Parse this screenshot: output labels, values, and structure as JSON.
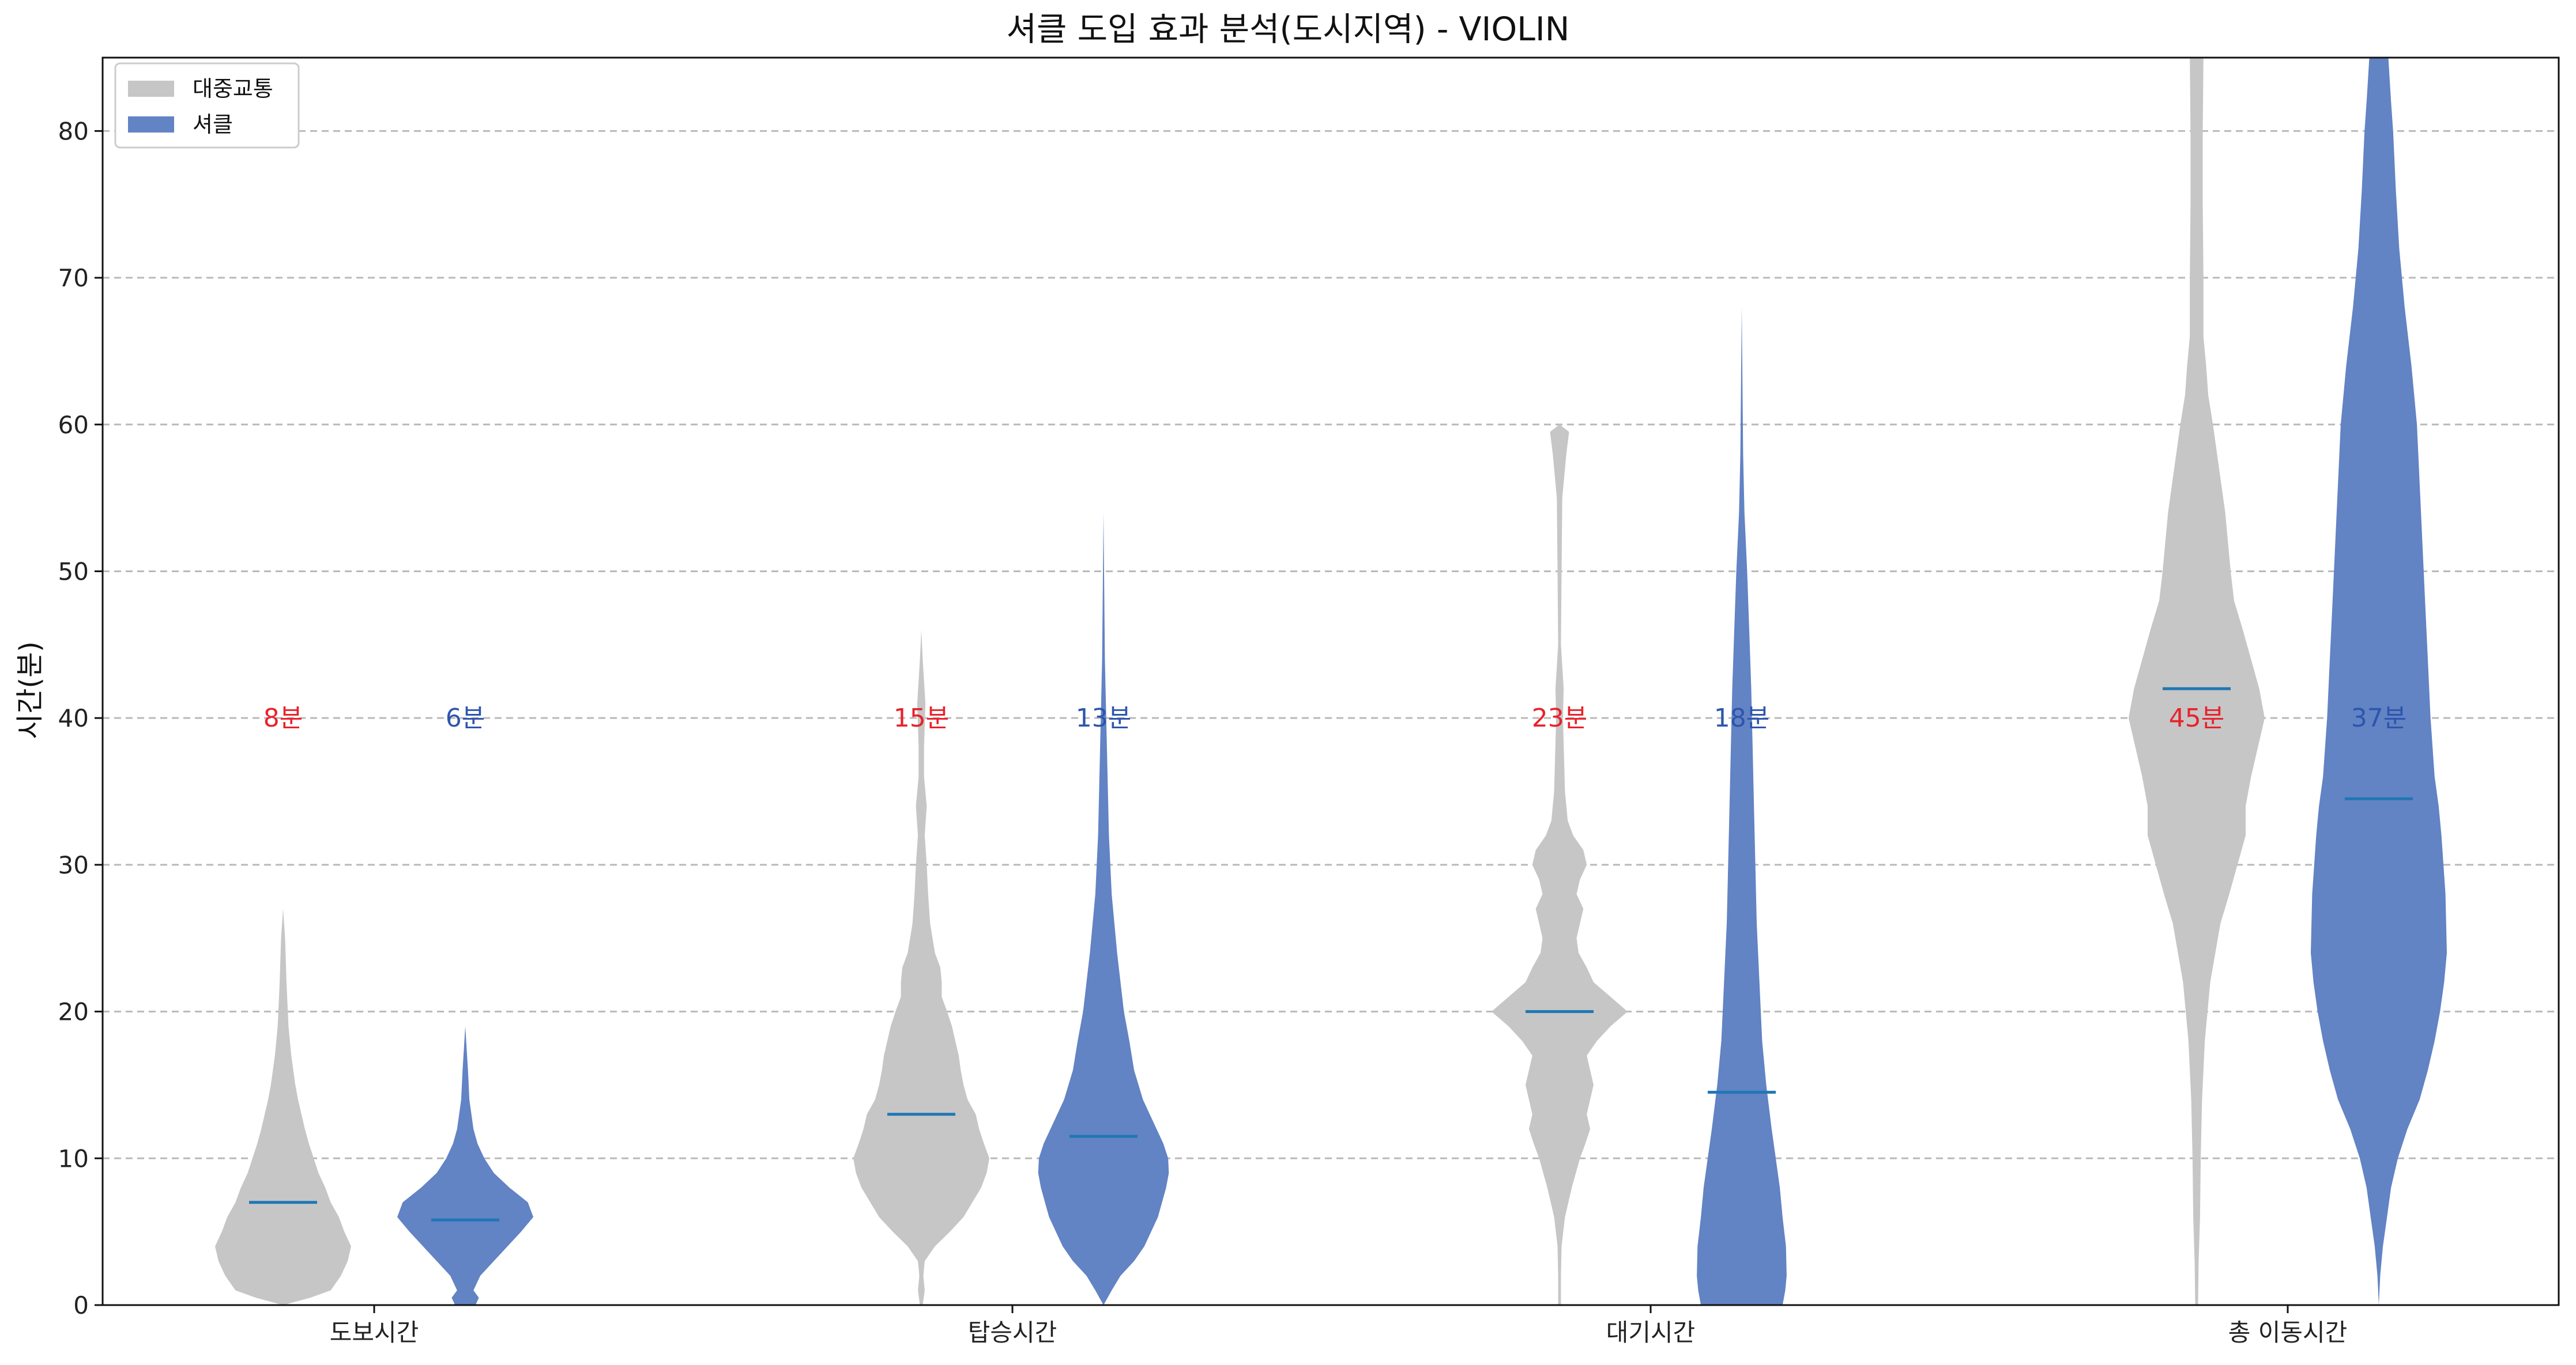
{
  "chart_data": {
    "type": "violin",
    "title": "셔클 도입 효과 분석(도시지역) - VIOLIN",
    "xlabel": "",
    "ylabel": "시간(분)",
    "ylim": [
      0,
      85
    ],
    "yticks": [
      0,
      10,
      20,
      30,
      40,
      50,
      60,
      70,
      80
    ],
    "grid": "y-dashed",
    "legend_position": "top-left",
    "categories": [
      "도보시간",
      "탑승시간",
      "대기시간",
      "총 이동시간"
    ],
    "series": [
      {
        "name": "대중교통",
        "color": "#c6c6c6",
        "annotation_color": "#e8222b",
        "annotations": [
          "8분",
          "15분",
          "23분",
          "45분"
        ],
        "medians": [
          7.0,
          13.0,
          20.0,
          42.0
        ],
        "ranges": [
          [
            0.0,
            27.0
          ],
          [
            0.0,
            46.0
          ],
          [
            0.0,
            60.0
          ],
          [
            0.0,
            85.0
          ]
        ],
        "density": [
          [
            [
              0,
              0.0
            ],
            [
              0.5,
              0.4
            ],
            [
              1,
              0.7
            ],
            [
              2,
              0.85
            ],
            [
              3,
              0.95
            ],
            [
              4,
              1.0
            ],
            [
              5,
              0.9
            ],
            [
              6,
              0.82
            ],
            [
              7,
              0.7
            ],
            [
              8,
              0.62
            ],
            [
              9,
              0.52
            ],
            [
              10,
              0.45
            ],
            [
              11,
              0.38
            ],
            [
              12,
              0.32
            ],
            [
              13,
              0.27
            ],
            [
              14,
              0.22
            ],
            [
              15,
              0.18
            ],
            [
              17,
              0.12
            ],
            [
              19,
              0.08
            ],
            [
              22,
              0.05
            ],
            [
              25,
              0.03
            ],
            [
              27,
              0.0
            ]
          ],
          [
            [
              0,
              0.02
            ],
            [
              1,
              0.05
            ],
            [
              2,
              0.03
            ],
            [
              3,
              0.05
            ],
            [
              4,
              0.2
            ],
            [
              5,
              0.42
            ],
            [
              6,
              0.62
            ],
            [
              7,
              0.75
            ],
            [
              8,
              0.88
            ],
            [
              9,
              0.96
            ],
            [
              10,
              1.0
            ],
            [
              11,
              0.92
            ],
            [
              12,
              0.85
            ],
            [
              13,
              0.8
            ],
            [
              14,
              0.68
            ],
            [
              15,
              0.62
            ],
            [
              16,
              0.58
            ],
            [
              17,
              0.55
            ],
            [
              18,
              0.5
            ],
            [
              19,
              0.45
            ],
            [
              20,
              0.38
            ],
            [
              21,
              0.3
            ],
            [
              22,
              0.3
            ],
            [
              23,
              0.28
            ],
            [
              24,
              0.2
            ],
            [
              26,
              0.13
            ],
            [
              28,
              0.1
            ],
            [
              30,
              0.08
            ],
            [
              32,
              0.05
            ],
            [
              34,
              0.08
            ],
            [
              36,
              0.04
            ],
            [
              38,
              0.04
            ],
            [
              41,
              0.06
            ],
            [
              44,
              0.02
            ],
            [
              46,
              0.0
            ]
          ],
          [
            [
              0,
              0.02
            ],
            [
              2,
              0.02
            ],
            [
              4,
              0.03
            ],
            [
              6,
              0.08
            ],
            [
              8,
              0.18
            ],
            [
              10,
              0.3
            ],
            [
              11,
              0.38
            ],
            [
              12,
              0.45
            ],
            [
              13,
              0.4
            ],
            [
              15,
              0.5
            ],
            [
              17,
              0.4
            ],
            [
              18,
              0.55
            ],
            [
              19,
              0.75
            ],
            [
              20,
              1.0
            ],
            [
              21,
              0.75
            ],
            [
              22,
              0.5
            ],
            [
              23,
              0.4
            ],
            [
              24,
              0.28
            ],
            [
              25,
              0.25
            ],
            [
              26,
              0.3
            ],
            [
              27,
              0.35
            ],
            [
              28,
              0.25
            ],
            [
              29,
              0.3
            ],
            [
              30,
              0.4
            ],
            [
              31,
              0.35
            ],
            [
              32,
              0.2
            ],
            [
              33,
              0.12
            ],
            [
              35,
              0.08
            ],
            [
              40,
              0.05
            ],
            [
              42,
              0.06
            ],
            [
              45,
              0.02
            ],
            [
              50,
              0.03
            ],
            [
              55,
              0.04
            ],
            [
              58,
              0.1
            ],
            [
              59.5,
              0.14
            ],
            [
              60,
              0.0
            ]
          ],
          [
            [
              0,
              0.02
            ],
            [
              3,
              0.03
            ],
            [
              6,
              0.05
            ],
            [
              10,
              0.06
            ],
            [
              14,
              0.08
            ],
            [
              18,
              0.12
            ],
            [
              22,
              0.2
            ],
            [
              26,
              0.35
            ],
            [
              28,
              0.48
            ],
            [
              30,
              0.6
            ],
            [
              32,
              0.72
            ],
            [
              34,
              0.72
            ],
            [
              36,
              0.8
            ],
            [
              38,
              0.9
            ],
            [
              40,
              1.0
            ],
            [
              42,
              0.92
            ],
            [
              44,
              0.8
            ],
            [
              46,
              0.68
            ],
            [
              48,
              0.55
            ],
            [
              50,
              0.5
            ],
            [
              52,
              0.46
            ],
            [
              54,
              0.42
            ],
            [
              56,
              0.36
            ],
            [
              58,
              0.3
            ],
            [
              60,
              0.24
            ],
            [
              62,
              0.17
            ],
            [
              64,
              0.14
            ],
            [
              66,
              0.1
            ],
            [
              70,
              0.1
            ],
            [
              75,
              0.09
            ],
            [
              80,
              0.09
            ],
            [
              85,
              0.1
            ]
          ]
        ]
      },
      {
        "name": "셔클",
        "color": "#6283c4",
        "annotation_color": "#2e55ad",
        "annotations": [
          "6분",
          "13분",
          "18분",
          "37분"
        ],
        "medians": [
          5.8,
          11.5,
          14.5,
          34.5
        ],
        "ranges": [
          [
            0.0,
            19.0
          ],
          [
            0.0,
            54.0
          ],
          [
            0.0,
            68.0
          ],
          [
            0.0,
            85.0
          ]
        ],
        "density": [
          [
            [
              0,
              0.15
            ],
            [
              0.5,
              0.2
            ],
            [
              1,
              0.12
            ],
            [
              2,
              0.22
            ],
            [
              3,
              0.42
            ],
            [
              4,
              0.62
            ],
            [
              5,
              0.82
            ],
            [
              6,
              1.0
            ],
            [
              7,
              0.92
            ],
            [
              8,
              0.65
            ],
            [
              9,
              0.42
            ],
            [
              10,
              0.28
            ],
            [
              11,
              0.18
            ],
            [
              12,
              0.12
            ],
            [
              14,
              0.06
            ],
            [
              16,
              0.04
            ],
            [
              19,
              0.0
            ]
          ],
          [
            [
              0,
              0.0
            ],
            [
              1,
              0.12
            ],
            [
              2,
              0.25
            ],
            [
              3,
              0.45
            ],
            [
              4,
              0.6
            ],
            [
              6,
              0.8
            ],
            [
              8,
              0.92
            ],
            [
              9,
              0.96
            ],
            [
              10,
              0.95
            ],
            [
              11,
              0.88
            ],
            [
              12,
              0.78
            ],
            [
              13,
              0.68
            ],
            [
              14,
              0.58
            ],
            [
              16,
              0.45
            ],
            [
              18,
              0.38
            ],
            [
              20,
              0.3
            ],
            [
              24,
              0.2
            ],
            [
              28,
              0.12
            ],
            [
              32,
              0.08
            ],
            [
              38,
              0.05
            ],
            [
              44,
              0.02
            ],
            [
              54,
              0.0
            ]
          ],
          [
            [
              0,
              0.6
            ],
            [
              0.5,
              0.62
            ],
            [
              1,
              0.64
            ],
            [
              2,
              0.66
            ],
            [
              4,
              0.65
            ],
            [
              6,
              0.6
            ],
            [
              8,
              0.56
            ],
            [
              10,
              0.5
            ],
            [
              12,
              0.44
            ],
            [
              15,
              0.36
            ],
            [
              18,
              0.3
            ],
            [
              22,
              0.26
            ],
            [
              26,
              0.22
            ],
            [
              30,
              0.2
            ],
            [
              34,
              0.18
            ],
            [
              38,
              0.16
            ],
            [
              42,
              0.14
            ],
            [
              46,
              0.11
            ],
            [
              50,
              0.08
            ],
            [
              54,
              0.04
            ],
            [
              58,
              0.02
            ],
            [
              68,
              0.0
            ]
          ],
          [
            [
              0,
              0.0
            ],
            [
              2,
              0.02
            ],
            [
              4,
              0.06
            ],
            [
              6,
              0.12
            ],
            [
              8,
              0.18
            ],
            [
              10,
              0.28
            ],
            [
              12,
              0.42
            ],
            [
              14,
              0.6
            ],
            [
              16,
              0.72
            ],
            [
              18,
              0.82
            ],
            [
              20,
              0.9
            ],
            [
              22,
              0.96
            ],
            [
              24,
              1.0
            ],
            [
              26,
              0.99
            ],
            [
              28,
              0.98
            ],
            [
              30,
              0.95
            ],
            [
              32,
              0.92
            ],
            [
              34,
              0.88
            ],
            [
              36,
              0.82
            ],
            [
              40,
              0.76
            ],
            [
              44,
              0.72
            ],
            [
              48,
              0.68
            ],
            [
              52,
              0.64
            ],
            [
              56,
              0.6
            ],
            [
              60,
              0.56
            ],
            [
              64,
              0.48
            ],
            [
              68,
              0.38
            ],
            [
              72,
              0.3
            ],
            [
              76,
              0.25
            ],
            [
              80,
              0.21
            ],
            [
              82,
              0.18
            ],
            [
              85,
              0.14
            ]
          ]
        ]
      }
    ]
  }
}
